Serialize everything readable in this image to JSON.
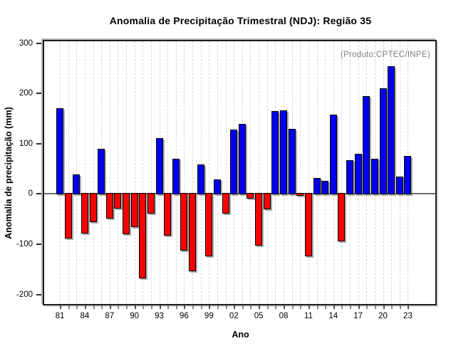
{
  "title": "Anomalia de Precipitação Trimestral (NDJ): Região 35",
  "annotation": "(Produto:CPTEC/INPE)",
  "chart_data": {
    "type": "bar",
    "title": "Anomalia de Precipitação Trimestral (NDJ): Região 35",
    "xlabel": "Ano",
    "ylabel": "Anomalia de precipitação (mm)",
    "ylim": [
      -219,
      304
    ],
    "ytick_values": [
      300,
      200,
      100,
      0,
      -100,
      -200
    ],
    "ytick_labels": [
      "300",
      "200",
      "100",
      "0",
      "-100",
      "-200"
    ],
    "grid": "vertical-dashed",
    "legend": "none",
    "annotation": "(Produto:CPTEC/INPE)",
    "positive_color": "#0000ee",
    "negative_color": "#f80000",
    "bar_border_color": "#000000",
    "categories": [
      1981,
      1982,
      1983,
      1984,
      1985,
      1986,
      1987,
      1988,
      1989,
      1990,
      1991,
      1992,
      1993,
      1994,
      1995,
      1996,
      1997,
      1998,
      1999,
      2000,
      2001,
      2002,
      2003,
      2004,
      2005,
      2006,
      2007,
      2008,
      2009,
      2010,
      2011,
      2012,
      2013,
      2014,
      2015,
      2016,
      2017,
      2018,
      2019,
      2020,
      2021,
      2022,
      2023
    ],
    "values": [
      169,
      -87,
      37,
      -77,
      -55,
      89,
      -47,
      -27,
      -78,
      -65,
      -167,
      -37,
      110,
      -82,
      69,
      -111,
      -152,
      58,
      -122,
      27,
      -38,
      127,
      138,
      -8,
      -102,
      -29,
      164,
      165,
      128,
      -2,
      -123,
      31,
      25,
      157,
      -93,
      66,
      79,
      193,
      69,
      209,
      253,
      33,
      74
    ],
    "xtick_years": [
      1981,
      1984,
      1987,
      1990,
      1993,
      1996,
      1999,
      2002,
      2005,
      2008,
      2011,
      2014,
      2017,
      2020,
      2023
    ],
    "xtick_labels": [
      "81",
      "84",
      "87",
      "90",
      "93",
      "96",
      "99",
      "02",
      "05",
      "08",
      "11",
      "14",
      "17",
      "20",
      "23"
    ]
  }
}
